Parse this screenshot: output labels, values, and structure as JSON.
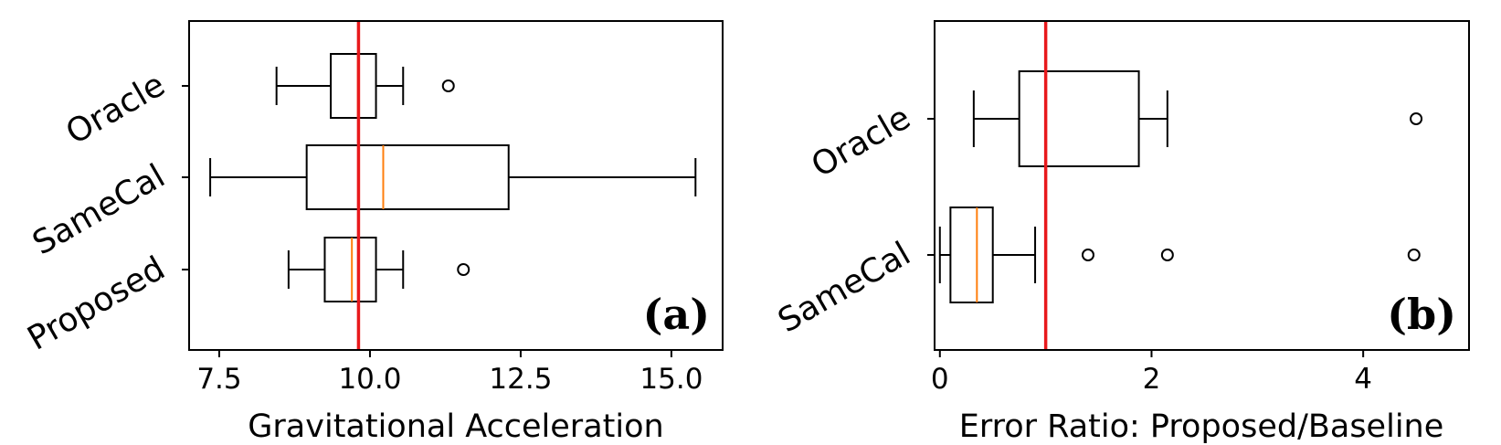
{
  "chart_data": [
    {
      "type": "boxplot",
      "orientation": "horizontal",
      "panel_label": "(a)",
      "xlabel": "Gravitational Acceleration",
      "xlim": [
        7.0,
        15.85
      ],
      "xticks": [
        7.5,
        10.0,
        12.5,
        15.0
      ],
      "xtick_labels": [
        "7.5",
        "10.0",
        "12.5",
        "15.0"
      ],
      "categories": [
        "Oracle",
        "SameCal",
        "Proposed"
      ],
      "reference_line": 9.81,
      "reference_color": "#e8191c",
      "median_color": "#ff7f0e",
      "boxes": [
        {
          "label": "Oracle",
          "whislo": 8.45,
          "q1": 9.35,
          "med": 9.8,
          "q3": 10.1,
          "whishi": 10.55,
          "fliers": [
            11.3
          ]
        },
        {
          "label": "SameCal",
          "whislo": 7.35,
          "q1": 8.95,
          "med": 10.22,
          "q3": 12.3,
          "whishi": 15.4,
          "fliers": []
        },
        {
          "label": "Proposed",
          "whislo": 8.65,
          "q1": 9.25,
          "med": 9.7,
          "q3": 10.1,
          "whishi": 10.55,
          "fliers": [
            11.55
          ]
        }
      ]
    },
    {
      "type": "boxplot",
      "orientation": "horizontal",
      "panel_label": "(b)",
      "xlabel": "Error Ratio: Proposed/Baseline",
      "xlim": [
        -0.05,
        5.0
      ],
      "xticks": [
        0,
        2,
        4
      ],
      "xtick_labels": [
        "0",
        "2",
        "4"
      ],
      "categories": [
        "Oracle",
        "SameCal"
      ],
      "reference_line": 1.0,
      "reference_color": "#e8191c",
      "median_color": "#ff7f0e",
      "boxes": [
        {
          "label": "Oracle",
          "whislo": 0.32,
          "q1": 0.75,
          "med": 1.0,
          "q3": 1.88,
          "whishi": 2.15,
          "fliers": [
            4.5
          ]
        },
        {
          "label": "SameCal",
          "whislo": 0.0,
          "q1": 0.1,
          "med": 0.35,
          "q3": 0.5,
          "whishi": 0.9,
          "fliers": [
            1.4,
            2.15,
            4.48
          ]
        }
      ]
    }
  ]
}
